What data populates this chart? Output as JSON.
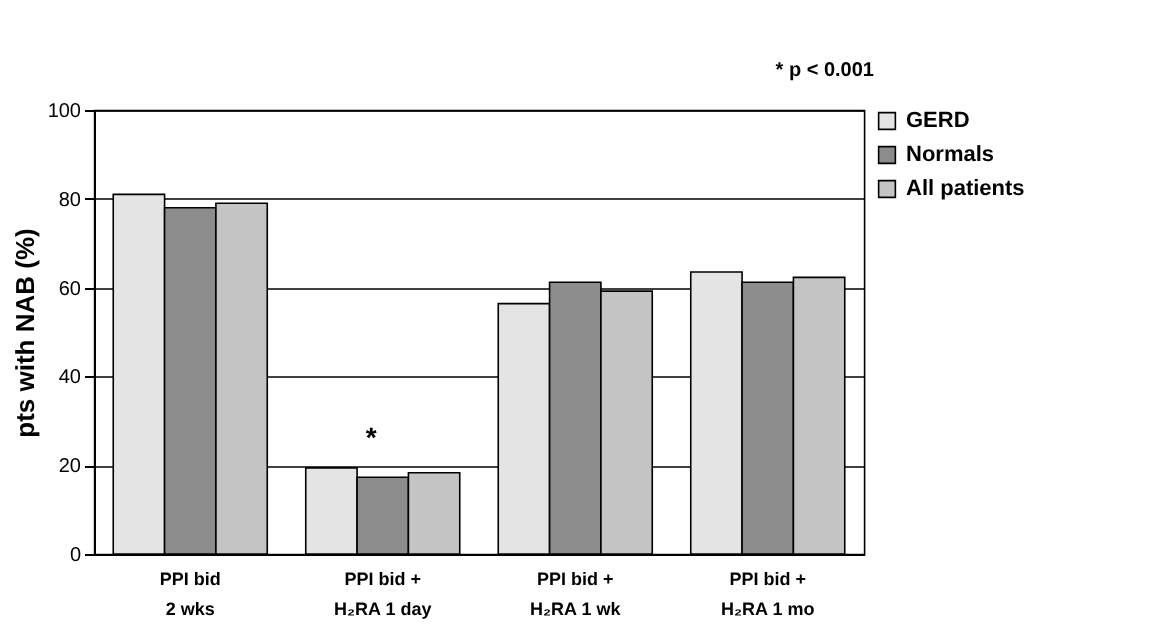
{
  "chart_data": {
    "type": "bar",
    "ylabel": "pts with NAB (%)",
    "categories": [
      "PPI bid\n2 wks",
      "PPI bid +\nH₂RA 1 day",
      "PPI bid +\nH₂RA 1 wk",
      "PPI bid +\nH₂RA 1 mo"
    ],
    "series": [
      {
        "name": "GERD",
        "color": "#e4e4e4",
        "values": [
          81,
          19.4,
          56.4,
          63.5
        ]
      },
      {
        "name": "Normals",
        "color": "#8c8c8c",
        "values": [
          78,
          17.3,
          61.2,
          61.2
        ]
      },
      {
        "name": "All patients",
        "color": "#c4c4c4",
        "values": [
          79,
          18.3,
          59.2,
          62.3
        ]
      }
    ],
    "ylim": [
      0,
      100
    ],
    "yticks": [
      0,
      20,
      40,
      60,
      80,
      100
    ],
    "grid": "y",
    "legend": "right",
    "annotations": [
      "*",
      "* p < 0.001"
    ]
  }
}
